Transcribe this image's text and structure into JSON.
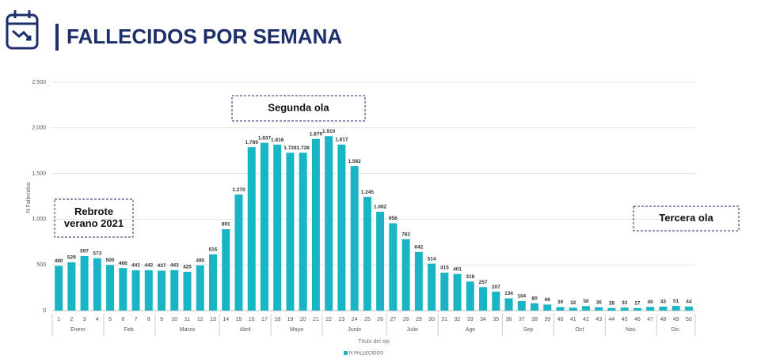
{
  "header": {
    "title": "FALLECIDOS POR SEMANA"
  },
  "chart_data": {
    "type": "bar",
    "y_axis_label": "N Fallecidos",
    "x_axis_label": "Título del eje",
    "color": "#19b5c4",
    "categories": [
      "1",
      "2",
      "3",
      "4",
      "5",
      "6",
      "7",
      "8",
      "9",
      "10",
      "11",
      "12",
      "13",
      "14",
      "15",
      "16",
      "17",
      "18",
      "19",
      "20",
      "21",
      "22",
      "23",
      "24",
      "25",
      "26",
      "27",
      "28",
      "29",
      "30",
      "31",
      "32",
      "33",
      "34",
      "35",
      "36",
      "37",
      "38",
      "39",
      "40",
      "41",
      "42",
      "43",
      "44",
      "45",
      "46",
      "47",
      "48",
      "49",
      "50"
    ],
    "series": [
      {
        "name": "N FALLECIDOS",
        "color": "#19b5c4",
        "values": [
          490,
          529,
          597,
          573,
          500,
          466,
          441,
          442,
          437,
          443,
          425,
          495,
          616,
          891,
          1270,
          1789,
          1837,
          1816,
          1728,
          1728,
          1879,
          1910,
          1817,
          1582,
          1245,
          1082,
          956,
          782,
          642,
          514,
          415,
          401,
          318,
          257,
          207,
          134,
          104,
          80,
          66,
          39,
          32,
          50,
          36,
          28,
          33,
          27,
          40,
          43,
          51,
          44
        ],
        "value_labels": [
          "490",
          "529",
          "597",
          "573",
          "500",
          "466",
          "441",
          "442",
          "437",
          "443",
          "425",
          "495",
          "616",
          "891",
          "1.270",
          "1.789",
          "1.837",
          "1.816",
          "1.728",
          "1.728",
          "1.879",
          "1.910",
          "1.817",
          "1.582",
          "1.245",
          "1.082",
          "956",
          "782",
          "642",
          "514",
          "415",
          "401",
          "318",
          "257",
          "207",
          "134",
          "104",
          "80",
          "66",
          "39",
          "32",
          "50",
          "36",
          "28",
          "33",
          "27",
          "40",
          "43",
          "51",
          "44"
        ]
      }
    ],
    "month_groups": [
      {
        "label": "Enero",
        "from": 1,
        "to": 4
      },
      {
        "label": "Feb.",
        "from": 5,
        "to": 8
      },
      {
        "label": "Marzo",
        "from": 9,
        "to": 13
      },
      {
        "label": "Abril",
        "from": 14,
        "to": 17
      },
      {
        "label": "Mayo",
        "from": 18,
        "to": 21
      },
      {
        "label": "Junio",
        "from": 22,
        "to": 26
      },
      {
        "label": "Julio",
        "from": 27,
        "to": 30
      },
      {
        "label": "Ago",
        "from": 31,
        "to": 35
      },
      {
        "label": "Sep",
        "from": 36,
        "to": 39
      },
      {
        "label": "Oct",
        "from": 40,
        "to": 43
      },
      {
        "label": "Nov.",
        "from": 44,
        "to": 47
      },
      {
        "label": "Dic.",
        "from": 48,
        "to": 50
      }
    ],
    "ylim": [
      0,
      2500
    ],
    "yticks": [
      0,
      500,
      {
        "value": 1000,
        "label": "1.000"
      },
      {
        "value": 1500,
        "label": "1.500"
      },
      {
        "value": 2000,
        "label": "2.000"
      },
      {
        "value": 2500,
        "label": "2.500"
      }
    ],
    "grid": true,
    "legend": "bottom",
    "annotations": [
      {
        "lines": [
          "Segunda ola"
        ]
      },
      {
        "lines": [
          "Rebrote",
          "verano 2021"
        ]
      },
      {
        "lines": [
          "Tercera ola"
        ]
      }
    ]
  }
}
